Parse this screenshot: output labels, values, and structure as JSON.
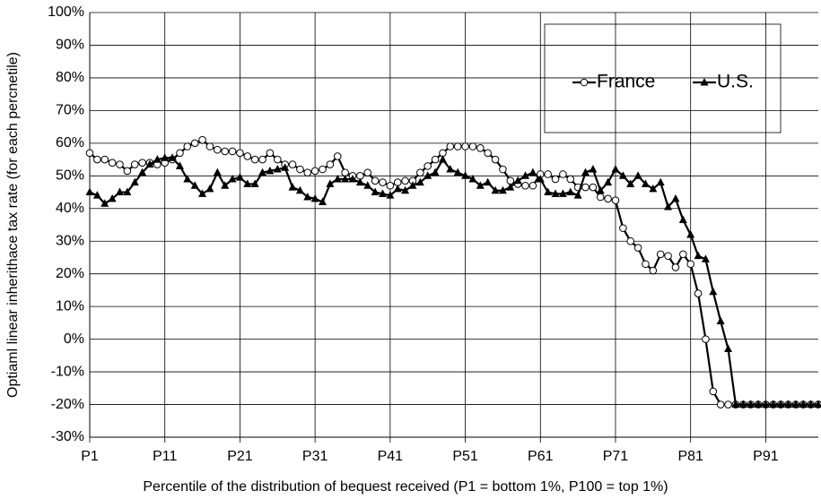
{
  "chart_data": {
    "type": "line",
    "x_label": "Percentile of the distribution of bequest received (P1 = bottom 1%, P100 = top 1%)",
    "y_label": "Optiaml linear inherithace tax rate (for each percnetile)",
    "x": [
      1,
      2,
      3,
      4,
      5,
      6,
      7,
      8,
      9,
      10,
      11,
      12,
      13,
      14,
      15,
      16,
      17,
      18,
      19,
      20,
      21,
      22,
      23,
      24,
      25,
      26,
      27,
      28,
      29,
      30,
      31,
      32,
      33,
      34,
      35,
      36,
      37,
      38,
      39,
      40,
      41,
      42,
      43,
      44,
      45,
      46,
      47,
      48,
      49,
      50,
      51,
      52,
      53,
      54,
      55,
      56,
      57,
      58,
      59,
      60,
      61,
      62,
      63,
      64,
      65,
      66,
      67,
      68,
      69,
      70,
      71,
      72,
      73,
      74,
      75,
      76,
      77,
      78,
      79,
      80,
      81,
      82,
      83,
      84,
      85,
      86,
      87,
      88,
      89,
      90,
      91,
      92,
      93,
      94,
      95,
      96,
      97,
      98
    ],
    "xlim": [
      1,
      98
    ],
    "xticks": [
      {
        "value": 1,
        "label": "P1"
      },
      {
        "value": 11,
        "label": "P11"
      },
      {
        "value": 21,
        "label": "P21"
      },
      {
        "value": 31,
        "label": "P31"
      },
      {
        "value": 41,
        "label": "P41"
      },
      {
        "value": 51,
        "label": "P51"
      },
      {
        "value": 61,
        "label": "P61"
      },
      {
        "value": 71,
        "label": "P71"
      },
      {
        "value": 81,
        "label": "P81"
      },
      {
        "value": 91,
        "label": "P91"
      }
    ],
    "ylim": [
      -30,
      100
    ],
    "yticks": [
      {
        "value": -30,
        "label": "-30%"
      },
      {
        "value": -20,
        "label": "-20%"
      },
      {
        "value": -10,
        "label": "-10%"
      },
      {
        "value": 0,
        "label": "0%"
      },
      {
        "value": 10,
        "label": "10%"
      },
      {
        "value": 20,
        "label": "20%"
      },
      {
        "value": 30,
        "label": "30%"
      },
      {
        "value": 40,
        "label": "40%"
      },
      {
        "value": 50,
        "label": "50%"
      },
      {
        "value": 60,
        "label": "60%"
      },
      {
        "value": 70,
        "label": "70%"
      },
      {
        "value": 80,
        "label": "80%"
      },
      {
        "value": 90,
        "label": "90%"
      },
      {
        "value": 100,
        "label": "100%"
      }
    ],
    "grid": true,
    "legend": "upper right",
    "series": [
      {
        "name": "France",
        "color": "#000000",
        "marker": "circle",
        "values": [
          57,
          55,
          55,
          54,
          53.5,
          51.5,
          53.5,
          54,
          54,
          53.5,
          54,
          55,
          57,
          59,
          60,
          61,
          59,
          58,
          57.5,
          57.5,
          57,
          56,
          55,
          55,
          57,
          55,
          53.5,
          53.5,
          52,
          51,
          51.5,
          52,
          53.5,
          56,
          51,
          50,
          50,
          51,
          48.5,
          48,
          47,
          48,
          48.5,
          48.5,
          51,
          53,
          55,
          57,
          59,
          59,
          59,
          59,
          58.5,
          57,
          55,
          52,
          48.5,
          47.5,
          47,
          47,
          50.5,
          50.5,
          49,
          50.5,
          49,
          46.5,
          46.5,
          46.5,
          43.5,
          43,
          42.5,
          34,
          30,
          28,
          23,
          21,
          26,
          25.5,
          22,
          26,
          23,
          14,
          0,
          -16,
          -20,
          -20,
          -20,
          -20,
          -20,
          -20,
          -20,
          -20,
          -20,
          -20,
          -20,
          -20,
          -20,
          -20
        ]
      },
      {
        "name": "U.S.",
        "color": "#000000",
        "marker": "triangle",
        "values": [
          45,
          44,
          41.5,
          43,
          45,
          45,
          48,
          51,
          53.5,
          55,
          55.5,
          55.5,
          53,
          49,
          47,
          44.5,
          46,
          51,
          47,
          49,
          49.5,
          47.5,
          47.5,
          51,
          51.5,
          52,
          52.5,
          46.5,
          45.5,
          43.5,
          43,
          42,
          47.5,
          49,
          49,
          49,
          48,
          47,
          45,
          44.5,
          44,
          46,
          45.5,
          47,
          48,
          50,
          51,
          55,
          52,
          51,
          50,
          49,
          47,
          48,
          45.5,
          45.5,
          46.5,
          48.5,
          50,
          51,
          49,
          45,
          44.5,
          44.5,
          45,
          44,
          51,
          52,
          45.5,
          48,
          52,
          50,
          47.5,
          50,
          47.5,
          46,
          48,
          40.5,
          43,
          36.5,
          32,
          25.5,
          24.5,
          14.5,
          5.5,
          -3,
          -20,
          -20,
          -20,
          -20,
          -20,
          -20,
          -20,
          -20,
          -20,
          -20,
          -20,
          -20
        ]
      }
    ]
  }
}
